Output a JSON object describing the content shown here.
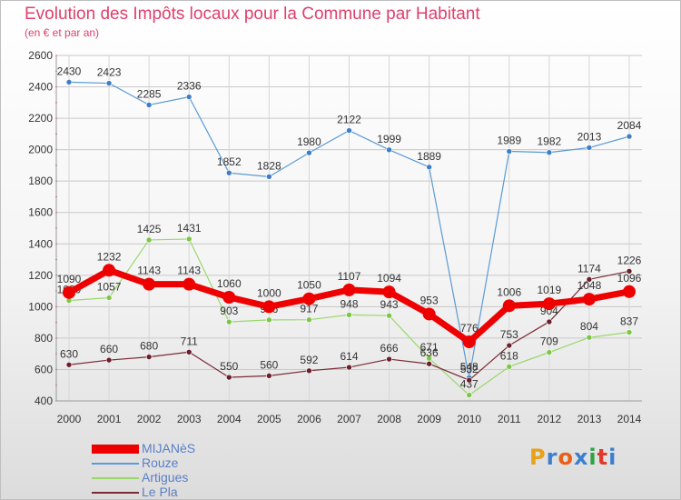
{
  "title": "Evolution des Impôts locaux pour la Commune par Habitant",
  "subtitle": "(en € et par an)",
  "logo": {
    "text": "Proxiti",
    "letter_colors": [
      "#e8a11b",
      "#3b7fd0",
      "#e8601a",
      "#3b7fd0",
      "#2ea344",
      "#e03a2a",
      "#3b7fd0"
    ]
  },
  "chart_data": {
    "type": "line",
    "x": [
      "2000",
      "2001",
      "2002",
      "2003",
      "2004",
      "2005",
      "2006",
      "2007",
      "2008",
      "2009",
      "2010",
      "2011",
      "2012",
      "2013",
      "2014"
    ],
    "ylim": [
      400,
      2600
    ],
    "yticks": [
      400,
      600,
      800,
      1000,
      1200,
      1400,
      1600,
      1800,
      2000,
      2200,
      2400,
      2600
    ],
    "grid": true,
    "legend_position": "bottom-left",
    "series": [
      {
        "name": "Rouze",
        "color": "#5b9bd5",
        "point_color": "#3d7ec4",
        "width": 1.2,
        "values": [
          2430,
          2423,
          2285,
          2336,
          1852,
          1828,
          1980,
          2122,
          1999,
          1889,
          548,
          1989,
          1982,
          2013,
          2084
        ]
      },
      {
        "name": "Artigues",
        "color": "#9ad86a",
        "point_color": "#7cc646",
        "width": 1.2,
        "values": [
          1039,
          1057,
          1425,
          1431,
          903,
          916,
          917,
          948,
          943,
          671,
          437,
          618,
          709,
          804,
          837
        ]
      },
      {
        "name": "Le Pla",
        "color": "#7a2a35",
        "point_color": "#6a1f2a",
        "width": 1.2,
        "values": [
          630,
          660,
          680,
          711,
          550,
          560,
          592,
          614,
          666,
          636,
          532,
          753,
          904,
          1174,
          1226
        ]
      },
      {
        "name": "MIJANèS",
        "color": "#ee0000",
        "point_color": "#ee0000",
        "width": 7,
        "values": [
          1090,
          1232,
          1143,
          1143,
          1060,
          1000,
          1050,
          1107,
          1094,
          953,
          776,
          1006,
          1019,
          1048,
          1096
        ]
      }
    ],
    "legend_order": [
      "MIJANèS",
      "Rouze",
      "Artigues",
      "Le Pla"
    ]
  }
}
